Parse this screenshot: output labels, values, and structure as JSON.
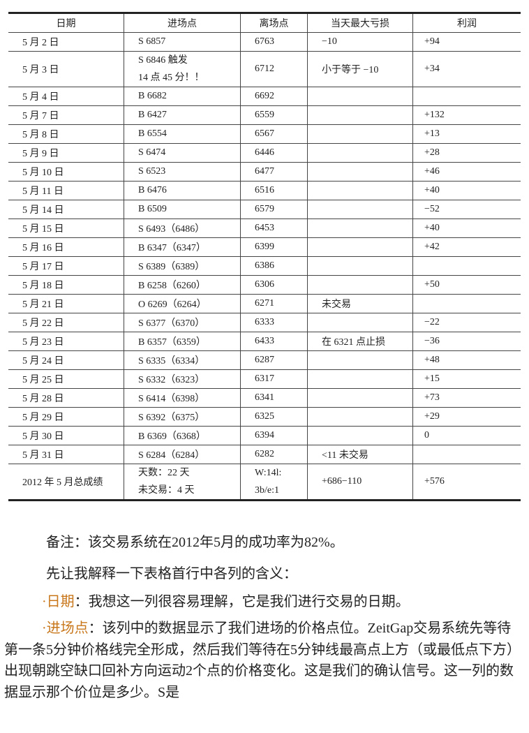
{
  "table": {
    "headers": [
      "日期",
      "进场点",
      "离场点",
      "当天最大亏损",
      "利润"
    ],
    "rows": [
      [
        "5 月 2 日",
        "S 6857",
        "6763",
        "−10",
        "+94"
      ],
      [
        "5 月 3 日",
        "S 6846 触发|14 点 45 分！！",
        "6712",
        "小于等于 −10",
        "+34"
      ],
      [
        "5 月 4 日",
        "B 6682",
        "6692",
        "",
        ""
      ],
      [
        "5 月 7 日",
        "B 6427",
        "6559",
        "",
        "+132"
      ],
      [
        "5 月 8 日",
        "B 6554",
        "6567",
        "",
        "+13"
      ],
      [
        "5 月 9 日",
        "S 6474",
        "6446",
        "",
        "+28"
      ],
      [
        "5 月 10 日",
        "S 6523",
        "6477",
        "",
        "+46"
      ],
      [
        "5 月 11 日",
        "B 6476",
        "6516",
        "",
        "+40"
      ],
      [
        "5 月 14 日",
        "B 6509",
        "6579",
        "",
        "−52"
      ],
      [
        "5 月 15 日",
        "S 6493（6486）",
        "6453",
        "",
        "+40"
      ],
      [
        "5 月 16 日",
        "B 6347（6347）",
        "6399",
        "",
        "+42"
      ],
      [
        "5 月 17 日",
        "S 6389（6389）",
        "6386",
        "",
        ""
      ],
      [
        "5 月 18 日",
        "B 6258（6260）",
        "6306",
        "",
        "+50"
      ],
      [
        "5 月 21 日",
        "O 6269（6264）",
        "6271",
        "未交易",
        ""
      ],
      [
        "5 月 22 日",
        "S 6377（6370）",
        "6333",
        "",
        "−22"
      ],
      [
        "5 月 23 日",
        "B 6357（6359）",
        "6433",
        "在 6321 点止损",
        "−36"
      ],
      [
        "5 月 24 日",
        "S 6335（6334）",
        "6287",
        "",
        "+48"
      ],
      [
        "5 月 25 日",
        "S 6332（6323）",
        "6317",
        "",
        "+15"
      ],
      [
        "5 月 28 日",
        "S 6414（6398）",
        "6341",
        "",
        "+73"
      ],
      [
        "5 月 29 日",
        "S 6392（6375）",
        "6325",
        "",
        "+29"
      ],
      [
        "5 月 30 日",
        "B 6369（6368）",
        "6394",
        "",
        "0"
      ],
      [
        "5 月 31 日",
        "S 6284（6284）",
        "6282",
        "<11 未交易",
        ""
      ],
      [
        "2012 年 5 月总成绩",
        "天数：22 天|未交易：4 天",
        "W:14l:|3b/e:1",
        "+686−110",
        "+576"
      ]
    ]
  },
  "text": {
    "note": "备注：该交易系统在2012年5月的成功率为82%。",
    "intro": "先让我解释一下表格首行中各列的含义：",
    "date_label": "·日期",
    "date_desc": "：我想这一列很容易理解，它是我们进行交易的日期。",
    "entry_label": "·进场点",
    "entry_desc": "：该列中的数据显示了我们进场的价格点位。ZeitGap交易系统先等待第一条5分钟价格线完全形成，然后我们等待在5分钟线最高点上方（或最低点下方）出现朝跳空缺口回补方向运动2个点的价格变化。这是我们的确认信号。这一列的数据显示那个价位是多少。S是"
  },
  "colors": {
    "highlight": "#c8771b"
  }
}
